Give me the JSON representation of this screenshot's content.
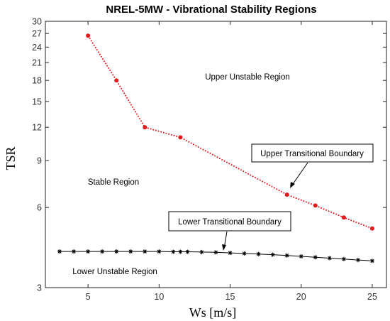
{
  "chart_data": {
    "type": "line",
    "title": "NREL-5MW - Vibrational Stability Regions",
    "xlabel": "Ws [m/s]",
    "ylabel": "TSR",
    "xlim": [
      2,
      26
    ],
    "ylim": [
      3,
      30
    ],
    "y_scale": "log",
    "x_ticks": [
      5,
      10,
      15,
      20,
      25
    ],
    "y_ticks": [
      3,
      6,
      9,
      12,
      15,
      18,
      21,
      24,
      27,
      30
    ],
    "grid": false,
    "series": [
      {
        "color": "#e31a1c",
        "marker": "dot",
        "line_style": "dotted",
        "x": [
          5,
          7,
          9,
          11.5,
          19,
          21,
          23,
          25
        ],
        "y": [
          26.5,
          18,
          12,
          11,
          6.7,
          6.1,
          5.5,
          5.0
        ]
      },
      {
        "color": "#000000",
        "marker": "star",
        "line_style": "solid",
        "x": [
          3,
          4,
          5,
          6,
          7,
          8,
          9,
          10,
          11,
          11.5,
          12,
          13,
          14,
          15,
          16,
          17,
          18,
          19,
          20,
          21,
          22,
          23,
          24,
          25
        ],
        "y": [
          4.1,
          4.1,
          4.1,
          4.1,
          4.1,
          4.1,
          4.1,
          4.1,
          4.09,
          4.09,
          4.09,
          4.08,
          4.07,
          4.05,
          4.03,
          4.01,
          3.99,
          3.96,
          3.93,
          3.9,
          3.87,
          3.84,
          3.81,
          3.78
        ]
      }
    ],
    "annotations": {
      "upper_unstable": "Upper Unstable Region",
      "stable": "Stable Region",
      "lower_unstable": "Lower Unstable Region",
      "upper_boundary": "Upper Transitional Boundary",
      "lower_boundary": "Lower Transitional Boundary"
    }
  }
}
